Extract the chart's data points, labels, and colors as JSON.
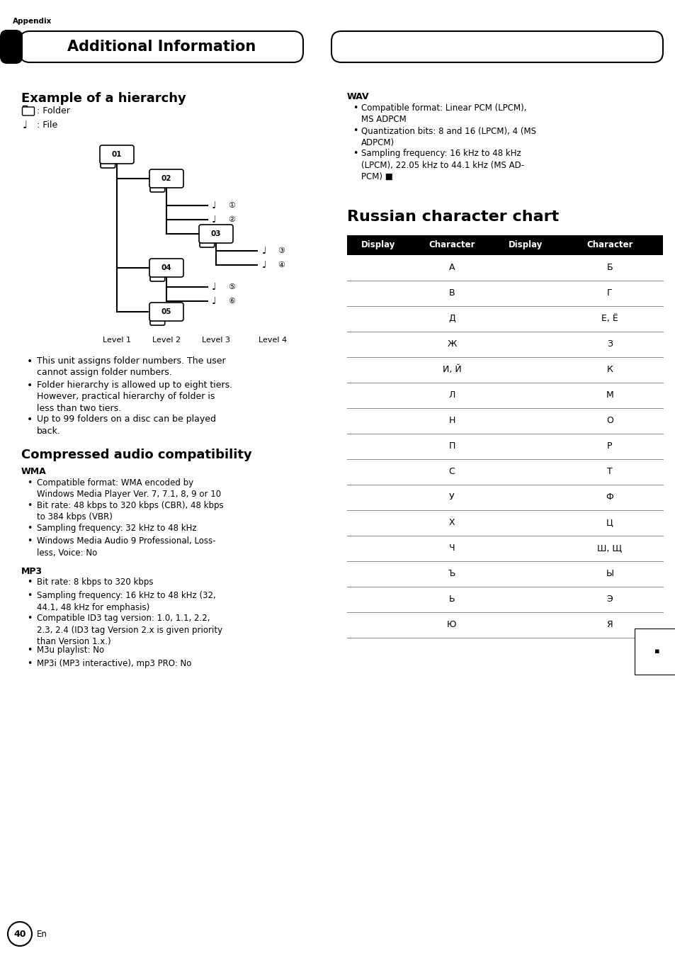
{
  "bg_color": "#ffffff",
  "header_title": "Additional Information",
  "header_label": "Appendix",
  "section1_title": "Example of a hierarchy",
  "legend_folder": ": Folder",
  "legend_file": ": File",
  "hierarchy_levels": [
    "Level 1",
    "Level 2",
    "Level 3",
    "Level 4"
  ],
  "bullets_hierarchy": [
    "This unit assigns folder numbers. The user\ncannot assign folder numbers.",
    "Folder hierarchy is allowed up to eight tiers.\nHowever, practical hierarchy of folder is\nless than two tiers.",
    "Up to 99 folders on a disc can be played\nback."
  ],
  "section2_title": "Compressed audio compatibility",
  "wma_title": "WMA",
  "wma_bullets": [
    "Compatible format: WMA encoded by\nWindows Media Player Ver. 7, 7.1, 8, 9 or 10",
    "Bit rate: 48 kbps to 320 kbps (CBR), 48 kbps\nto 384 kbps (VBR)",
    "Sampling frequency: 32 kHz to 48 kHz",
    "Windows Media Audio 9 Professional, Loss-\nless, Voice: No"
  ],
  "mp3_title": "MP3",
  "mp3_bullets": [
    "Bit rate: 8 kbps to 320 kbps",
    "Sampling frequency: 16 kHz to 48 kHz (32,\n44.1, 48 kHz for emphasis)",
    "Compatible ID3 tag version: 1.0, 1.1, 2.2,\n2.3, 2.4 (ID3 tag Version 2.x is given priority\nthan Version 1.x.)",
    "M3u playlist: No",
    "MP3i (MP3 interactive), mp3 PRO: No"
  ],
  "wav_title": "WAV",
  "wav_bullets": [
    "Compatible format: Linear PCM (LPCM),\nMS ADPCM",
    "Quantization bits: 8 and 16 (LPCM), 4 (MS\nADPCM)",
    "Sampling frequency: 16 kHz to 48 kHz\n(LPCM), 22.05 kHz to 44.1 kHz (MS AD-\nPCM) ■"
  ],
  "russian_title": "Russian character chart",
  "russian_header": [
    "Display",
    "Character",
    "Display",
    "Character"
  ],
  "russian_rows": [
    [
      "А",
      "Б"
    ],
    [
      "В",
      "Г"
    ],
    [
      "Д",
      "Е, Ё"
    ],
    [
      "Ж",
      "З"
    ],
    [
      "И, Й",
      "К"
    ],
    [
      "Л",
      "М"
    ],
    [
      "Н",
      "О"
    ],
    [
      "П",
      "Р"
    ],
    [
      "С",
      "Т"
    ],
    [
      "У",
      "Ф"
    ],
    [
      "Х",
      "Ц"
    ],
    [
      "Ч",
      "Ш, Щ"
    ],
    [
      "Ъ",
      "Ы"
    ],
    [
      "Ь",
      "Э"
    ],
    [
      "Ю",
      "Я"
    ]
  ],
  "page_number": "40"
}
